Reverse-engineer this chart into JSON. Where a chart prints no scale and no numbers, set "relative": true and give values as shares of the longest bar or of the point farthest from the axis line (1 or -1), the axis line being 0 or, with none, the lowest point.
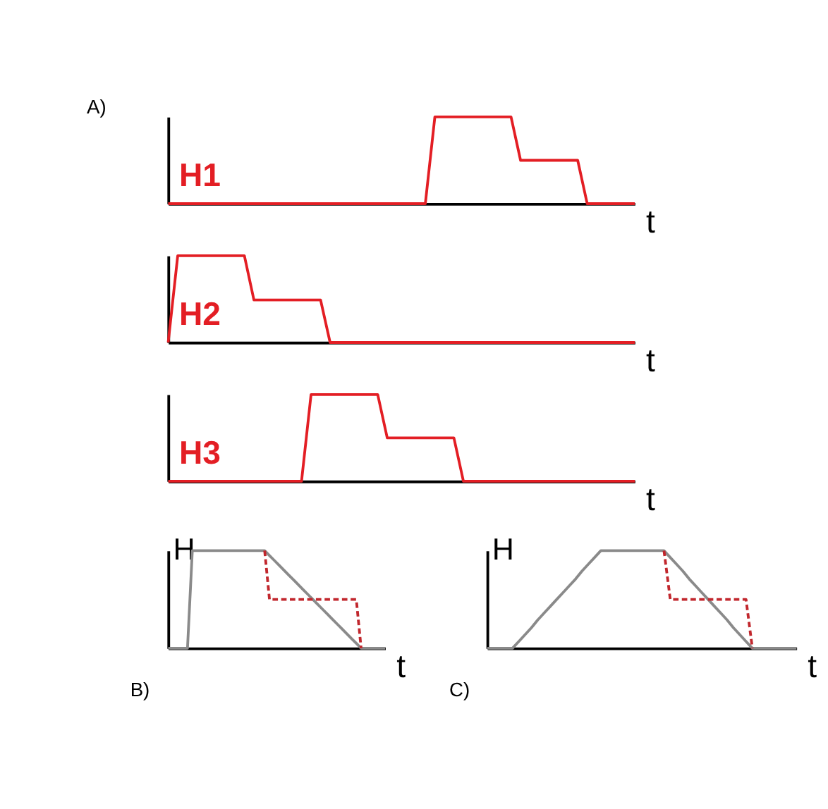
{
  "chart_data": [
    {
      "type": "line",
      "title": "A)",
      "xlabel": "t",
      "relative": true,
      "categories": [
        null,
        null,
        null,
        null,
        null,
        null,
        null,
        null,
        null,
        null,
        null,
        null,
        null,
        null,
        null,
        null,
        null,
        null,
        null,
        null,
        null,
        null,
        null,
        null,
        null,
        null,
        null,
        null,
        null,
        null,
        null,
        null,
        null,
        null,
        null,
        null,
        null,
        null,
        null,
        null,
        null,
        null,
        null,
        null,
        null,
        null,
        null,
        null,
        null,
        null
      ],
      "series": [
        {
          "name": "H1",
          "color": "#e31e24",
          "values": [
            0,
            0,
            0,
            0,
            0,
            0,
            0,
            0,
            0,
            0,
            0,
            0,
            0,
            0,
            0,
            0,
            0,
            0,
            0,
            0,
            0,
            0,
            0,
            0,
            0,
            0,
            0,
            0,
            1,
            1,
            1,
            1,
            1,
            1,
            1,
            1,
            1,
            0.5,
            0.5,
            0.5,
            0.5,
            0.5,
            0.5,
            0.5,
            0,
            0,
            0,
            0,
            0,
            0
          ]
        }
      ]
    },
    {
      "type": "line",
      "xlabel": "t",
      "relative": true,
      "categories": [
        null,
        null,
        null,
        null,
        null,
        null,
        null,
        null,
        null,
        null,
        null,
        null,
        null,
        null,
        null,
        null,
        null,
        null,
        null,
        null,
        null,
        null,
        null,
        null,
        null,
        null,
        null,
        null,
        null,
        null,
        null,
        null,
        null,
        null,
        null,
        null,
        null,
        null,
        null,
        null,
        null,
        null,
        null,
        null,
        null,
        null,
        null,
        null,
        null,
        null
      ],
      "series": [
        {
          "name": "H2",
          "color": "#e31e24",
          "values": [
            0,
            1,
            1,
            1,
            1,
            1,
            1,
            1,
            1,
            0.49,
            0.49,
            0.49,
            0.49,
            0.49,
            0.49,
            0.49,
            0.49,
            0,
            0,
            0,
            0,
            0,
            0,
            0,
            0,
            0,
            0,
            0,
            0,
            0,
            0,
            0,
            0,
            0,
            0,
            0,
            0,
            0,
            0,
            0,
            0,
            0,
            0,
            0,
            0,
            0,
            0,
            0,
            0,
            0
          ]
        }
      ]
    },
    {
      "type": "line",
      "xlabel": "t",
      "relative": true,
      "categories": [
        null,
        null,
        null,
        null,
        null,
        null,
        null,
        null,
        null,
        null,
        null,
        null,
        null,
        null,
        null,
        null,
        null,
        null,
        null,
        null,
        null,
        null,
        null,
        null,
        null,
        null,
        null,
        null,
        null,
        null,
        null,
        null,
        null,
        null,
        null,
        null,
        null,
        null,
        null,
        null,
        null,
        null,
        null,
        null,
        null,
        null,
        null,
        null,
        null,
        null
      ],
      "series": [
        {
          "name": "H3",
          "color": "#e31e24",
          "values": [
            0,
            0,
            0,
            0,
            0,
            0,
            0,
            0,
            0,
            0,
            0,
            0,
            0,
            0,
            0,
            1,
            1,
            1,
            1,
            1,
            1,
            1,
            1,
            0.5,
            0.5,
            0.5,
            0.5,
            0.5,
            0.5,
            0.5,
            0.5,
            0,
            0,
            0,
            0,
            0,
            0,
            0,
            0,
            0,
            0,
            0,
            0,
            0,
            0,
            0,
            0,
            0,
            0,
            0
          ]
        }
      ]
    },
    {
      "type": "line",
      "title": "B)",
      "xlabel": "t",
      "ylabel": "H",
      "relative": true,
      "categories": [
        null,
        null,
        null,
        null,
        null,
        null,
        null,
        null,
        null,
        null,
        null,
        null,
        null,
        null,
        null,
        null,
        null,
        null,
        null,
        null,
        null,
        null,
        null,
        null,
        null,
        null,
        null,
        null,
        null,
        null,
        null,
        null,
        null,
        null,
        null,
        null,
        null,
        null,
        null,
        null,
        null,
        null,
        null,
        null,
        null,
        null
      ],
      "series": [
        {
          "color": "#8a8a8a",
          "values": [
            0,
            0,
            0,
            0,
            0,
            1,
            1,
            1,
            1,
            1,
            1,
            1,
            1,
            1,
            1,
            1,
            1,
            1,
            1,
            1,
            1,
            0.95,
            0.9,
            0.85,
            0.8,
            0.75,
            0.7,
            0.65,
            0.6,
            0.55,
            0.5,
            0.45,
            0.4,
            0.35,
            0.3,
            0.25,
            0.2,
            0.15,
            0.1,
            0.05,
            0,
            0,
            0,
            0,
            0,
            0
          ]
        },
        {
          "color": "#c1272d",
          "line_style": "dashed",
          "values": [
            null,
            null,
            null,
            null,
            null,
            null,
            null,
            null,
            null,
            null,
            null,
            null,
            null,
            null,
            null,
            null,
            null,
            null,
            null,
            null,
            1,
            0.5,
            0.5,
            0.5,
            0.5,
            0.5,
            0.5,
            0.5,
            0.5,
            0.5,
            0.5,
            0.5,
            0.5,
            0.5,
            0.5,
            0.5,
            0.5,
            0.5,
            0.5,
            0.5,
            0,
            null,
            null,
            null,
            null,
            null
          ]
        }
      ]
    },
    {
      "type": "line",
      "title": "C)",
      "xlabel": "t",
      "ylabel": "H",
      "relative": true,
      "categories": [
        null,
        null,
        null,
        null,
        null,
        null,
        null,
        null,
        null,
        null,
        null,
        null,
        null,
        null,
        null,
        null,
        null,
        null,
        null,
        null,
        null,
        null,
        null,
        null,
        null,
        null,
        null,
        null,
        null,
        null,
        null,
        null,
        null,
        null,
        null,
        null,
        null,
        null,
        null,
        null,
        null,
        null,
        null,
        null,
        null,
        null,
        null,
        null,
        null,
        null
      ],
      "series": [
        {
          "color": "#8a8a8a",
          "values": [
            0,
            0,
            0,
            0,
            0,
            0.07,
            0.14,
            0.21,
            0.29,
            0.36,
            0.43,
            0.5,
            0.57,
            0.64,
            0.71,
            0.79,
            0.86,
            0.93,
            1,
            1,
            1,
            1,
            1,
            1,
            1,
            1,
            1,
            1,
            1,
            0.93,
            0.86,
            0.79,
            0.71,
            0.64,
            0.57,
            0.5,
            0.43,
            0.36,
            0.29,
            0.21,
            0.14,
            0.07,
            0,
            0,
            0,
            0,
            0,
            0,
            0,
            0
          ]
        },
        {
          "color": "#c1272d",
          "line_style": "dashed",
          "values": [
            null,
            null,
            null,
            null,
            null,
            null,
            null,
            null,
            null,
            null,
            null,
            null,
            null,
            null,
            null,
            null,
            null,
            null,
            null,
            null,
            null,
            null,
            null,
            null,
            null,
            null,
            null,
            null,
            1,
            0.5,
            0.5,
            0.5,
            0.5,
            0.5,
            0.5,
            0.5,
            0.5,
            0.5,
            0.5,
            0.5,
            0.5,
            0.5,
            0,
            null,
            null,
            null,
            null,
            null,
            null,
            null
          ]
        }
      ]
    }
  ]
}
